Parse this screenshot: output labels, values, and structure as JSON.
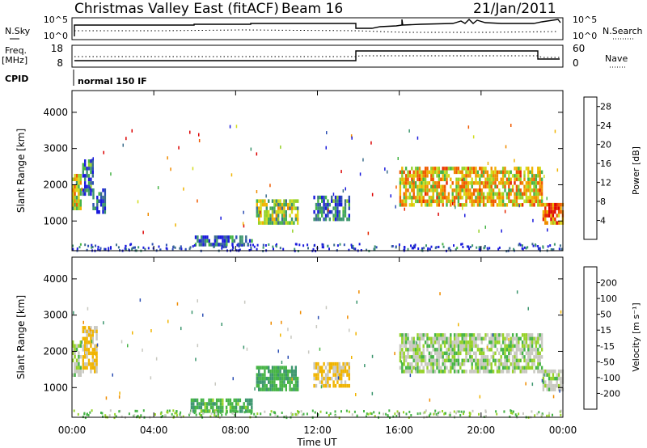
{
  "header": {
    "title": "Christmas Valley East (fitACF)",
    "beam": "Beam 16",
    "date": "21/Jan/2011"
  },
  "top_panels": {
    "nsky_label": "N.Sky",
    "nsky_ticks": [
      "10^5",
      "10^0"
    ],
    "nsearch_label": "N.Search",
    "nsearch_ticks": [
      "10^5",
      "10^0"
    ],
    "freq_label": "Freq.",
    "freq_unit": "[MHz]",
    "freq_ticks": [
      "18",
      "8"
    ],
    "nave_label": "Nave",
    "nave_ticks": [
      "60",
      "0"
    ],
    "cpid_label": "CPID",
    "cpid_value": "normal 150 IF"
  },
  "colors": {
    "power": [
      "#1a1adc",
      "#2e50b4",
      "#3c6e8c",
      "#3c966e",
      "#46b446",
      "#96d228",
      "#d2dc1e",
      "#f0b400",
      "#f08c00",
      "#f05a00",
      "#e62800",
      "#dc0000"
    ],
    "velocity": [
      "#dc0000",
      "#f05000",
      "#f08c00",
      "#f0b400",
      "#c8c8c0",
      "#c8c8c0",
      "#96d228",
      "#46b446",
      "#3c966e",
      "#2e50b4",
      "#1a1adc"
    ]
  },
  "chart_data": [
    {
      "type": "heatmap",
      "name": "power",
      "xlabel": "Time UT",
      "ylabel": "Slant Range [km]",
      "x_ticks": [
        "00:00",
        "04:00",
        "08:00",
        "12:00",
        "16:00",
        "20:00",
        "00:00"
      ],
      "xlim_hours": [
        0,
        24
      ],
      "y_ticks": [
        1000,
        2000,
        3000,
        4000
      ],
      "ylim": [
        180,
        4600
      ],
      "colorbar_label": "Power [dB]",
      "colorbar_ticks": [
        4,
        8,
        12,
        16,
        20,
        24,
        28
      ],
      "colorbar_range": [
        0,
        30
      ],
      "regions": [
        {
          "t": [
            0.0,
            0.4
          ],
          "r": [
            1300,
            2300
          ],
          "level": 0.55
        },
        {
          "t": [
            0.5,
            1.0
          ],
          "r": [
            1700,
            2700
          ],
          "level": 0.2
        },
        {
          "t": [
            1.0,
            1.6
          ],
          "r": [
            1200,
            1900
          ],
          "level": 0.1
        },
        {
          "t": [
            6.0,
            8.8
          ],
          "r": [
            300,
            600
          ],
          "level": 0.15
        },
        {
          "t": [
            9.0,
            11.0
          ],
          "r": [
            900,
            1600
          ],
          "level": 0.45
        },
        {
          "t": [
            11.8,
            13.6
          ],
          "r": [
            1000,
            1700
          ],
          "level": 0.2
        },
        {
          "t": [
            16.0,
            23.0
          ],
          "r": [
            1400,
            2500
          ],
          "level": 0.6
        },
        {
          "t": [
            23.0,
            24.0
          ],
          "r": [
            900,
            1500
          ],
          "level": 0.75
        }
      ]
    },
    {
      "type": "heatmap",
      "name": "velocity",
      "xlabel": "Time UT",
      "ylabel": "Slant Range [km]",
      "x_ticks": [
        "00:00",
        "04:00",
        "08:00",
        "12:00",
        "16:00",
        "20:00",
        "00:00"
      ],
      "xlim_hours": [
        0,
        24
      ],
      "y_ticks": [
        1000,
        2000,
        3000,
        4000
      ],
      "ylim": [
        180,
        4600
      ],
      "colorbar_label": "Velocity [m s⁻¹]",
      "colorbar_ticks": [
        -200,
        -100,
        -50,
        -15,
        15,
        50,
        100,
        200
      ],
      "regions": [
        {
          "t": [
            0.0,
            0.4
          ],
          "r": [
            1300,
            2300
          ],
          "vel": 0
        },
        {
          "t": [
            0.5,
            1.2
          ],
          "r": [
            1400,
            2700
          ],
          "vel": -60
        },
        {
          "t": [
            5.8,
            8.8
          ],
          "r": [
            300,
            700
          ],
          "vel": 40
        },
        {
          "t": [
            9.0,
            11.0
          ],
          "r": [
            900,
            1600
          ],
          "vel": 45
        },
        {
          "t": [
            11.8,
            13.6
          ],
          "r": [
            1000,
            1700
          ],
          "vel": -60
        },
        {
          "t": [
            16.0,
            23.0
          ],
          "r": [
            1400,
            2500
          ],
          "vel": 0
        },
        {
          "t": [
            23.0,
            24.0
          ],
          "r": [
            900,
            1500
          ],
          "vel": -10
        }
      ]
    }
  ]
}
